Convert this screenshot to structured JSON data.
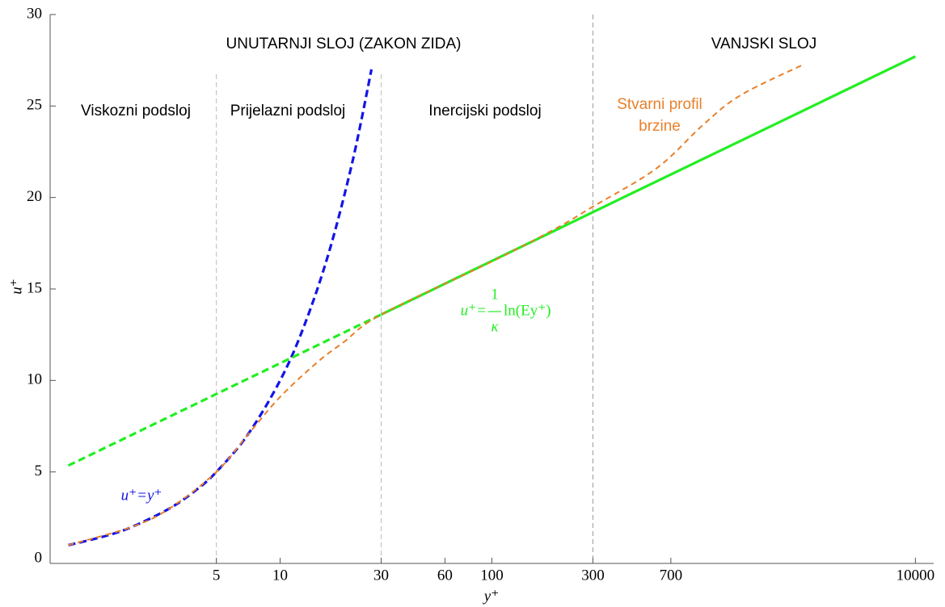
{
  "chart_data": {
    "type": "line",
    "xscale": "log",
    "xlabel": "y⁺",
    "ylabel": "u⁺",
    "xlim": [
      0.82,
      12200
    ],
    "ylim": [
      0,
      30
    ],
    "xticks": [
      5,
      10,
      30,
      60,
      100,
      300,
      700,
      10000
    ],
    "yticks": [
      0,
      5,
      10,
      15,
      20,
      25,
      30
    ],
    "vlines": [
      5,
      30,
      300
    ],
    "series": [
      {
        "color": "#1414e6",
        "dashed": true,
        "x": [
          1,
          1.5,
          2,
          3,
          4,
          5,
          7,
          10,
          13,
          17,
          22,
          27
        ],
        "values": [
          1,
          1.5,
          2,
          3,
          4,
          5,
          7,
          10,
          13,
          17,
          22,
          27
        ]
      },
      {
        "color": "#22ee22",
        "dashed": true,
        "x": [
          1,
          5,
          10,
          30
        ],
        "values": [
          5.35,
          9.26,
          10.94,
          13.6
        ]
      },
      {
        "color": "#22ee22",
        "dashed": false,
        "x": [
          30,
          100,
          300,
          1000,
          10000
        ],
        "values": [
          13.6,
          16.53,
          19.2,
          22.12,
          27.71
        ]
      },
      {
        "color": "#e8802a",
        "dashed": true,
        "x": [
          1,
          2,
          3,
          5,
          7,
          10,
          15,
          20,
          30,
          100,
          200,
          300,
          600,
          1000,
          1500,
          3000
        ],
        "values": [
          1,
          2,
          3,
          5,
          7,
          9.1,
          11.0,
          12.1,
          13.6,
          16.5,
          18.3,
          19.5,
          21.6,
          24.0,
          25.6,
          27.3
        ]
      }
    ],
    "annotations": [
      "UNUTARNJI SLOJ (ZAKON ZIDA)",
      "VANJSKI SLOJ",
      "Viskozni podsloj",
      "Prijelazni podsloj",
      "Inercijski podsloj",
      "Stvarni profil",
      "brzine"
    ],
    "formula_viscous": "u⁺=y⁺",
    "formula_log": {
      "lhs": "u⁺=",
      "num": "1",
      "den": "κ",
      "rhs": "ln(Ey⁺)"
    }
  }
}
